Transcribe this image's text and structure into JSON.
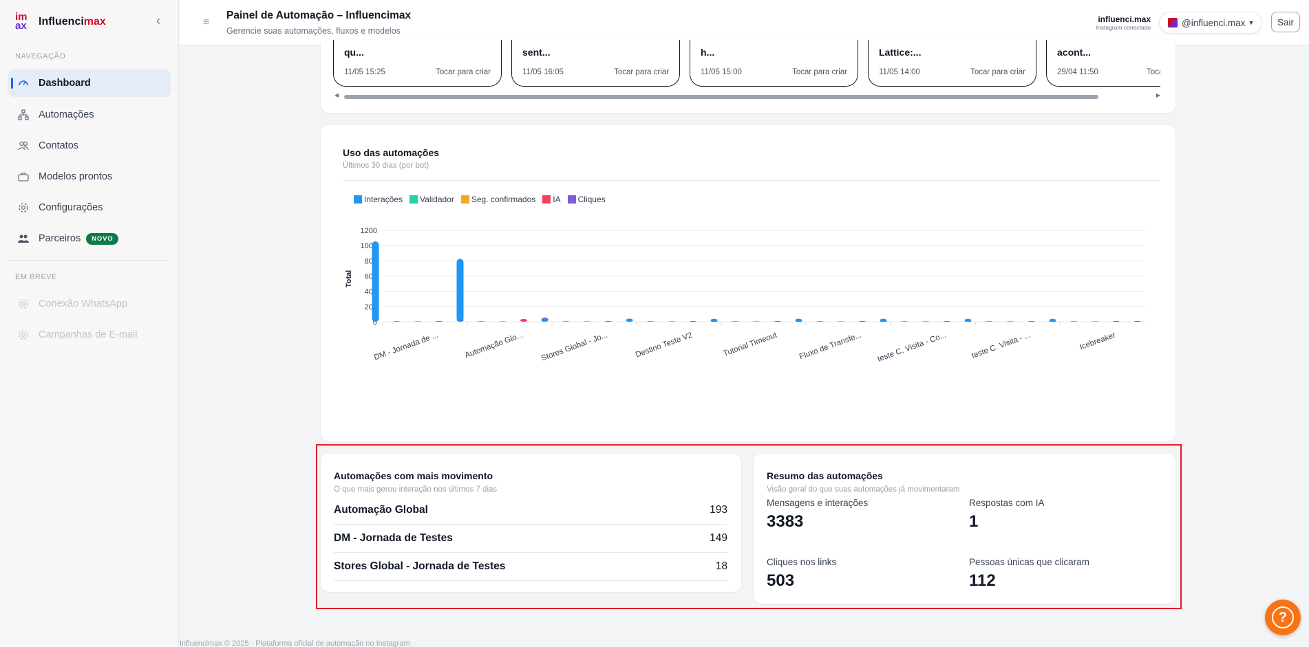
{
  "brand": {
    "name_a": "Influenci",
    "name_b": "max",
    "logo_top": "im",
    "logo_bottom": "ax"
  },
  "sidebar": {
    "section_nav": "NAVEGAÇÃO",
    "items": [
      {
        "label": "Dashboard",
        "icon": "gauge-icon"
      },
      {
        "label": "Automações",
        "icon": "sitemap-icon"
      },
      {
        "label": "Contatos",
        "icon": "users-icon"
      },
      {
        "label": "Modelos prontos",
        "icon": "briefcase-icon"
      },
      {
        "label": "Configurações",
        "icon": "gear-icon"
      },
      {
        "label": "Parceiros",
        "icon": "people-icon",
        "badge": "NOVO"
      }
    ],
    "section_soon": "EM BREVE",
    "soon_items": [
      {
        "label": "Conexão WhatsApp"
      },
      {
        "label": "Campanhas de E-mail"
      }
    ]
  },
  "header": {
    "title": "Painel de Automação – Influencimax",
    "subtitle": "Gerencie suas automações, fluxos e modelos",
    "account_name": "influenci.max",
    "account_status": "Instagram conectado",
    "account_handle": "@influenci.max",
    "logout": "Sair"
  },
  "flow_cards": [
    {
      "title": "qu...",
      "date": "11/05 15:25",
      "action": "Tocar para criar"
    },
    {
      "title": "sent...",
      "date": "11/05 16:05",
      "action": "Tocar para criar"
    },
    {
      "title": "h...",
      "date": "11/05 15:00",
      "action": "Tocar para criar"
    },
    {
      "title": "Lattice:...",
      "date": "11/05 14:00",
      "action": "Tocar para criar"
    },
    {
      "title": "acont...",
      "date": "29/04 11:50",
      "action": "Tocar para criar"
    }
  ],
  "usage_chart": {
    "title": "Uso das automações",
    "subtitle": "Últimos 30 dias (por bot)",
    "legend": [
      {
        "name": "Interações",
        "color": "#2196f3"
      },
      {
        "name": "Validador",
        "color": "#22d3a6"
      },
      {
        "name": "Seg. confirmados",
        "color": "#f5a623"
      },
      {
        "name": "IA",
        "color": "#f43f5e"
      },
      {
        "name": "Cliques",
        "color": "#7c5cdb"
      }
    ]
  },
  "chart_data": {
    "type": "bar",
    "title": "Uso das automações",
    "subtitle": "Últimos 30 dias (por bot)",
    "xlabel": "",
    "ylabel": "Total",
    "ylim": [
      0,
      1200
    ],
    "yticks": [
      0,
      200,
      400,
      600,
      800,
      1000,
      1200
    ],
    "grid": true,
    "legend_position": "top-left",
    "categories": [
      "DM - Jornada de ...",
      "Automação Glo...",
      "Stores Global - Jo...",
      "Destino Teste V2",
      "Tutorial Timeout",
      "Fluxo de Transfe...",
      "teste C. Visita - Co...",
      "teste C. Visita - ...",
      "Icebreaker"
    ],
    "series": [
      {
        "name": "Interações",
        "color": "#2196f3",
        "values": [
          1020,
          790,
          8,
          4,
          3,
          3,
          3,
          2,
          2
        ]
      },
      {
        "name": "Validador",
        "color": "#22d3a6",
        "values": [
          0,
          0,
          0,
          0,
          0,
          0,
          0,
          0,
          0
        ]
      },
      {
        "name": "Seg. confirmados",
        "color": "#f5a623",
        "values": [
          0,
          0,
          0,
          0,
          0,
          0,
          0,
          0,
          0
        ]
      },
      {
        "name": "IA",
        "color": "#f43f5e",
        "values": [
          0,
          1,
          0,
          0,
          0,
          0,
          0,
          0,
          0
        ]
      },
      {
        "name": "Cliques",
        "color": "#7c5cdb",
        "values": [
          10,
          20,
          4,
          0,
          0,
          0,
          0,
          0,
          0
        ]
      }
    ]
  },
  "top_automations": {
    "title": "Automações com mais movimento",
    "subtitle": "O que mais gerou interação nos últimos 7 dias",
    "rows": [
      {
        "name": "Automação Global",
        "value": "193"
      },
      {
        "name": "DM - Jornada de Testes",
        "value": "149"
      },
      {
        "name": "Stores Global - Jornada de Testes",
        "value": "18"
      }
    ]
  },
  "summary": {
    "title": "Resumo das automações",
    "subtitle": "Visão geral do que suas automações já movimentaram",
    "stats": [
      {
        "label": "Mensagens e interações",
        "value": "3383"
      },
      {
        "label": "Respostas com IA",
        "value": "1"
      },
      {
        "label": "Cliques nos links",
        "value": "503"
      },
      {
        "label": "Pessoas únicas que clicaram",
        "value": "112"
      }
    ]
  },
  "footer": {
    "text": "Influencimax © 2025 · Plataforma oficial de automação no Instagram"
  },
  "colors": {
    "accent": "#2563eb",
    "brand_red": "#c8102e",
    "brand_purple": "#6d28d9",
    "highlight": "#e11d24",
    "help": "#f97316"
  }
}
